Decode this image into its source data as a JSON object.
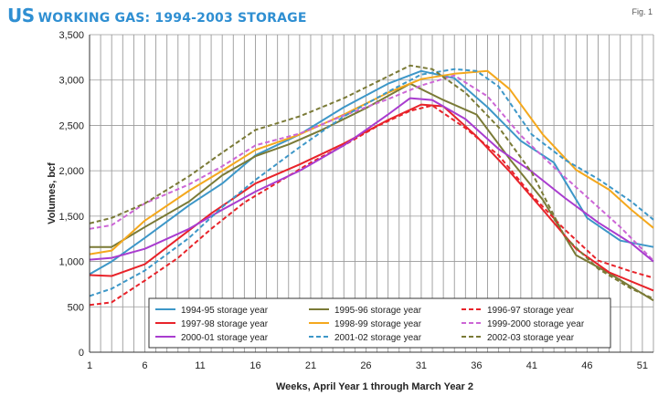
{
  "header": {
    "title_prefix": "US",
    "title_main": "WORKING GAS: 1994-2003 STORAGE",
    "fig_label": "Fig. 1"
  },
  "chart_data": {
    "type": "line",
    "title": "US WORKING GAS: 1994-2003 STORAGE",
    "xlabel": "Weeks, April Year 1 through March Year 2",
    "ylabel": "Volumes, bcf",
    "xlim": [
      1,
      52
    ],
    "ylim": [
      0,
      3500
    ],
    "x_ticks": [
      1,
      6,
      11,
      16,
      21,
      26,
      31,
      36,
      41,
      46,
      51
    ],
    "y_ticks": [
      0,
      500,
      1000,
      1500,
      2000,
      2500,
      3000,
      3500
    ],
    "y_tick_labels": [
      "0",
      "500",
      "1,000",
      "1,500",
      "2,000",
      "2,500",
      "3,000",
      "3,500"
    ],
    "grid": "vertical lines every week",
    "legend_position": "bottom-right",
    "series": [
      {
        "name": "1994-95 storage year",
        "color": "#3d97c8",
        "dash": "solid",
        "points": [
          [
            1,
            860
          ],
          [
            3,
            1000
          ],
          [
            6,
            1260
          ],
          [
            10,
            1620
          ],
          [
            13,
            1860
          ],
          [
            16,
            2170
          ],
          [
            20,
            2400
          ],
          [
            24,
            2700
          ],
          [
            28,
            2960
          ],
          [
            31,
            3100
          ],
          [
            34,
            3020
          ],
          [
            37,
            2700
          ],
          [
            40,
            2330
          ],
          [
            43,
            2090
          ],
          [
            46,
            1480
          ],
          [
            49,
            1230
          ],
          [
            52,
            1160
          ]
        ]
      },
      {
        "name": "1995-96 storage year",
        "color": "#7a7a36",
        "dash": "solid",
        "points": [
          [
            1,
            1160
          ],
          [
            3,
            1160
          ],
          [
            6,
            1380
          ],
          [
            10,
            1660
          ],
          [
            13,
            1950
          ],
          [
            16,
            2160
          ],
          [
            19,
            2290
          ],
          [
            22,
            2450
          ],
          [
            26,
            2690
          ],
          [
            30,
            2960
          ],
          [
            33,
            2780
          ],
          [
            36,
            2620
          ],
          [
            39,
            2130
          ],
          [
            42,
            1680
          ],
          [
            45,
            1070
          ],
          [
            48,
            870
          ],
          [
            52,
            570
          ]
        ]
      },
      {
        "name": "1996-97 storage year",
        "color": "#e8232a",
        "dash": "dashed",
        "points": [
          [
            1,
            520
          ],
          [
            3,
            550
          ],
          [
            6,
            790
          ],
          [
            9,
            1040
          ],
          [
            12,
            1360
          ],
          [
            15,
            1650
          ],
          [
            18,
            1870
          ],
          [
            21,
            2090
          ],
          [
            24,
            2280
          ],
          [
            27,
            2490
          ],
          [
            30,
            2660
          ],
          [
            32,
            2720
          ],
          [
            35,
            2470
          ],
          [
            38,
            2170
          ],
          [
            41,
            1730
          ],
          [
            44,
            1350
          ],
          [
            47,
            1010
          ],
          [
            50,
            890
          ],
          [
            52,
            820
          ]
        ]
      },
      {
        "name": "1997-98 storage year",
        "color": "#e8232a",
        "dash": "solid",
        "points": [
          [
            1,
            850
          ],
          [
            3,
            840
          ],
          [
            6,
            970
          ],
          [
            9,
            1250
          ],
          [
            12,
            1530
          ],
          [
            16,
            1860
          ],
          [
            20,
            2070
          ],
          [
            24,
            2300
          ],
          [
            28,
            2560
          ],
          [
            31,
            2730
          ],
          [
            33,
            2710
          ],
          [
            36,
            2380
          ],
          [
            39,
            1990
          ],
          [
            42,
            1570
          ],
          [
            45,
            1140
          ],
          [
            48,
            880
          ],
          [
            52,
            680
          ]
        ]
      },
      {
        "name": "1998-99 storage year",
        "color": "#f4a81d",
        "dash": "solid",
        "points": [
          [
            1,
            1080
          ],
          [
            3,
            1120
          ],
          [
            6,
            1450
          ],
          [
            10,
            1780
          ],
          [
            13,
            2000
          ],
          [
            16,
            2230
          ],
          [
            20,
            2400
          ],
          [
            24,
            2620
          ],
          [
            28,
            2860
          ],
          [
            31,
            3010
          ],
          [
            34,
            3070
          ],
          [
            37,
            3100
          ],
          [
            39,
            2900
          ],
          [
            42,
            2400
          ],
          [
            45,
            2010
          ],
          [
            48,
            1790
          ],
          [
            50,
            1570
          ],
          [
            52,
            1370
          ]
        ]
      },
      {
        "name": "1999-2000 storage year",
        "color": "#cc66d6",
        "dash": "dashed",
        "points": [
          [
            1,
            1360
          ],
          [
            3,
            1400
          ],
          [
            6,
            1640
          ],
          [
            10,
            1850
          ],
          [
            13,
            2050
          ],
          [
            16,
            2280
          ],
          [
            20,
            2410
          ],
          [
            24,
            2610
          ],
          [
            28,
            2790
          ],
          [
            31,
            2940
          ],
          [
            34,
            3050
          ],
          [
            37,
            2820
          ],
          [
            40,
            2390
          ],
          [
            43,
            2040
          ],
          [
            46,
            1710
          ],
          [
            49,
            1380
          ],
          [
            52,
            1010
          ]
        ]
      },
      {
        "name": "2000-01 storage year",
        "color": "#a93ccf",
        "dash": "solid",
        "points": [
          [
            1,
            1020
          ],
          [
            3,
            1040
          ],
          [
            6,
            1140
          ],
          [
            10,
            1360
          ],
          [
            13,
            1570
          ],
          [
            16,
            1770
          ],
          [
            20,
            2000
          ],
          [
            24,
            2280
          ],
          [
            28,
            2620
          ],
          [
            30,
            2800
          ],
          [
            32,
            2780
          ],
          [
            35,
            2570
          ],
          [
            38,
            2240
          ],
          [
            41,
            1990
          ],
          [
            44,
            1700
          ],
          [
            47,
            1430
          ],
          [
            50,
            1200
          ],
          [
            52,
            1000
          ]
        ]
      },
      {
        "name": "2001-02 storage year",
        "color": "#3d97c8",
        "dash": "dashed",
        "points": [
          [
            1,
            620
          ],
          [
            3,
            700
          ],
          [
            6,
            900
          ],
          [
            10,
            1260
          ],
          [
            13,
            1600
          ],
          [
            16,
            1900
          ],
          [
            20,
            2260
          ],
          [
            24,
            2600
          ],
          [
            28,
            2870
          ],
          [
            31,
            3060
          ],
          [
            34,
            3120
          ],
          [
            36,
            3100
          ],
          [
            38,
            2930
          ],
          [
            41,
            2400
          ],
          [
            44,
            2120
          ],
          [
            47,
            1910
          ],
          [
            50,
            1660
          ],
          [
            52,
            1460
          ]
        ]
      },
      {
        "name": "2002-03 storage year",
        "color": "#7a7a36",
        "dash": "dashed",
        "points": [
          [
            1,
            1420
          ],
          [
            3,
            1480
          ],
          [
            6,
            1640
          ],
          [
            10,
            1940
          ],
          [
            13,
            2200
          ],
          [
            16,
            2450
          ],
          [
            20,
            2600
          ],
          [
            24,
            2800
          ],
          [
            27,
            2980
          ],
          [
            30,
            3160
          ],
          [
            32,
            3120
          ],
          [
            35,
            2860
          ],
          [
            38,
            2480
          ],
          [
            41,
            1980
          ],
          [
            44,
            1270
          ],
          [
            47,
            920
          ],
          [
            50,
            700
          ],
          [
            52,
            590
          ]
        ]
      }
    ]
  }
}
